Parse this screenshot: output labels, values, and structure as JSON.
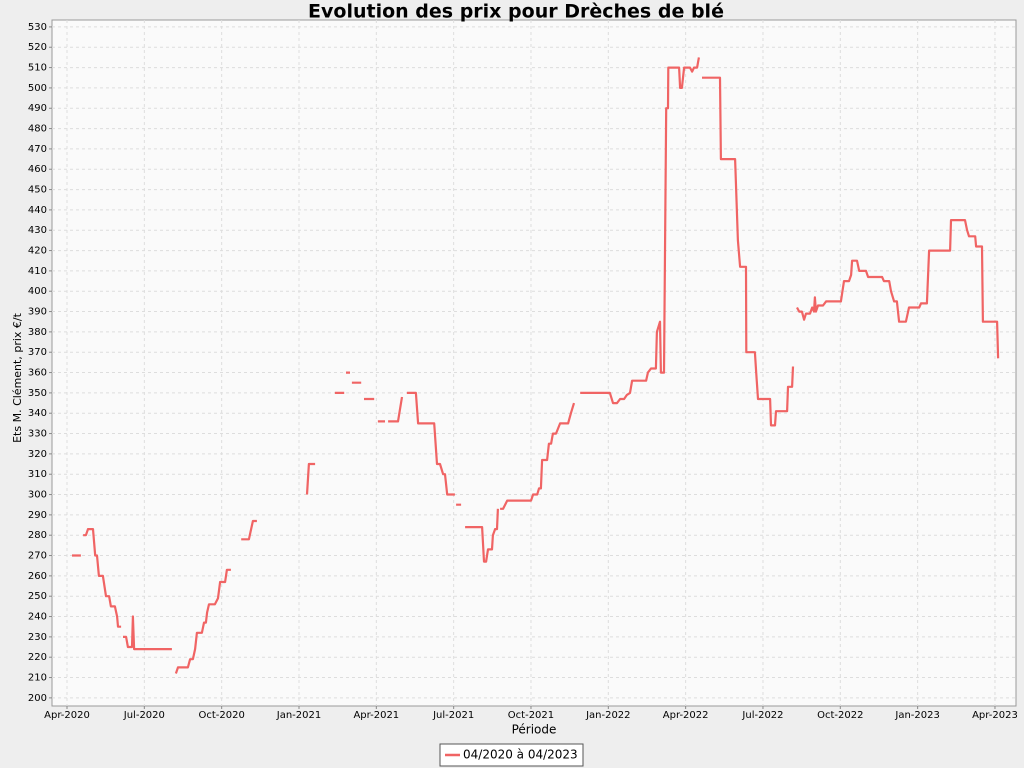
{
  "chart_data": {
    "type": "line",
    "title": "Evolution des prix pour Drèches de blé",
    "x_label": "Période",
    "y_label": "Ets M. Clément, prix €/t",
    "grid": true,
    "legend": "bottom",
    "xlim": [
      2020.2015,
      2023.318
    ],
    "ylim": [
      196,
      533.4
    ],
    "xticks": [
      {
        "value": 2020.25,
        "label": "Apr-2020"
      },
      {
        "value": 2020.5,
        "label": "Jul-2020"
      },
      {
        "value": 2020.75,
        "label": "Oct-2020"
      },
      {
        "value": 2021.0,
        "label": "Jan-2021"
      },
      {
        "value": 2021.25,
        "label": "Apr-2021"
      },
      {
        "value": 2021.5,
        "label": "Jul-2021"
      },
      {
        "value": 2021.75,
        "label": "Oct-2021"
      },
      {
        "value": 2022.0,
        "label": "Jan-2022"
      },
      {
        "value": 2022.25,
        "label": "Apr-2022"
      },
      {
        "value": 2022.5,
        "label": "Jul-2022"
      },
      {
        "value": 2022.75,
        "label": "Oct-2022"
      },
      {
        "value": 2023.0,
        "label": "Jan-2023"
      },
      {
        "value": 2023.25,
        "label": "Apr-2023"
      }
    ],
    "yticks": [
      200,
      210,
      220,
      230,
      240,
      250,
      260,
      270,
      280,
      290,
      300,
      310,
      320,
      330,
      340,
      350,
      360,
      370,
      380,
      390,
      400,
      410,
      420,
      430,
      440,
      450,
      460,
      470,
      480,
      490,
      500,
      510,
      520,
      530
    ],
    "series": [
      {
        "name": "04/2020 à 04/2023",
        "color": "#f06464",
        "x": [
          2020.266,
          2020.295,
          null,
          2020.302,
          2020.311,
          2020.318,
          2020.334,
          2020.341,
          2020.347,
          2020.353,
          2020.366,
          2020.376,
          2020.386,
          2020.392,
          2020.405,
          2020.412,
          2020.415,
          2020.425,
          null,
          2020.431,
          2020.441,
          2020.447,
          2020.46,
          2020.463,
          2020.467,
          2020.589,
          null,
          2020.602,
          2020.609,
          2020.641,
          2020.648,
          2020.657,
          2020.664,
          2020.67,
          2020.686,
          2020.693,
          2020.699,
          2020.703,
          2020.709,
          2020.728,
          2020.738,
          2020.745,
          2020.761,
          2020.767,
          2020.78,
          null,
          2020.813,
          2020.838,
          2020.851,
          2020.864,
          null,
          2021.026,
          2021.032,
          2021.052,
          null,
          2021.116,
          2021.146,
          null,
          2021.152,
          2021.165,
          null,
          2021.171,
          2021.201,
          null,
          2021.21,
          2021.243,
          null,
          2021.255,
          2021.278,
          null,
          2021.288,
          2021.32,
          2021.333,
          null,
          2021.349,
          2021.378,
          2021.385,
          2021.437,
          2021.446,
          2021.456,
          2021.466,
          2021.472,
          2021.479,
          2021.504,
          null,
          2021.508,
          2021.524,
          null,
          2021.537,
          2021.592,
          2021.598,
          2021.605,
          2021.611,
          2021.624,
          2021.627,
          2021.634,
          2021.64,
          2021.643,
          null,
          2021.65,
          2021.66,
          2021.673,
          2021.75,
          2021.757,
          2021.77,
          2021.776,
          2021.782,
          2021.786,
          2021.802,
          2021.808,
          2021.815,
          2021.821,
          2021.831,
          2021.844,
          2021.87,
          2021.879,
          2021.889,
          null,
          2021.909,
          2022.005,
          2022.015,
          2022.028,
          2022.038,
          2022.051,
          2022.06,
          2022.07,
          2022.077,
          2022.122,
          2022.128,
          2022.138,
          2022.154,
          2022.157,
          2022.167,
          2022.17,
          2022.18,
          2022.187,
          2022.193,
          2022.194,
          2022.229,
          2022.232,
          2022.238,
          2022.245,
          2022.264,
          2022.271,
          2022.277,
          2022.287,
          2022.293,
          null,
          2022.303,
          2022.361,
          2022.364,
          2022.41,
          2022.419,
          2022.426,
          2022.445,
          2022.446,
          2022.474,
          2022.478,
          2022.484,
          2022.523,
          2022.526,
          2022.539,
          2022.542,
          2022.578,
          2022.581,
          2022.594,
          2022.597,
          null,
          2022.61,
          2022.617,
          2022.626,
          2022.633,
          2022.639,
          2022.652,
          2022.659,
          2022.665,
          2022.668,
          2022.671,
          2022.678,
          2022.694,
          2022.704,
          2022.752,
          2022.762,
          2022.778,
          2022.785,
          2022.788,
          2022.804,
          2022.811,
          2022.833,
          2022.84,
          2022.885,
          2022.891,
          2022.908,
          2022.914,
          2022.924,
          2022.933,
          2022.94,
          2022.962,
          2022.972,
          2023.005,
          2023.011,
          2023.03,
          2023.037,
          2023.105,
          2023.108,
          2023.153,
          2023.16,
          2023.166,
          2023.186,
          2023.189,
          2023.208,
          2023.211,
          2023.257,
          2023.26
        ],
        "values": [
          270,
          270,
          null,
          280,
          280,
          283,
          283,
          270,
          270,
          260,
          260,
          250,
          250,
          245,
          245,
          240,
          235,
          235,
          null,
          230,
          230,
          225,
          225,
          240,
          224,
          224,
          null,
          212,
          215,
          215,
          219,
          219,
          224,
          232,
          232,
          237,
          237,
          242,
          246,
          246,
          249,
          257,
          257,
          263,
          263,
          null,
          278,
          278,
          287,
          287,
          null,
          300,
          315,
          315,
          null,
          350,
          350,
          null,
          360,
          360,
          null,
          355,
          355,
          null,
          347,
          347,
          null,
          336,
          336,
          null,
          336,
          336,
          348,
          null,
          350,
          350,
          335,
          335,
          315,
          315,
          310,
          310,
          300,
          300,
          null,
          295,
          295,
          null,
          284,
          284,
          267,
          267,
          273,
          273,
          280,
          283,
          283,
          293,
          null,
          293,
          293,
          297,
          297,
          300,
          300,
          303,
          303,
          317,
          317,
          325,
          325,
          330,
          330,
          335,
          335,
          340,
          345,
          null,
          350,
          350,
          345,
          345,
          347,
          347,
          349,
          350,
          356,
          356,
          360,
          362,
          362,
          380,
          385,
          360,
          360,
          490,
          490,
          510,
          510,
          500,
          500,
          510,
          510,
          508,
          510,
          510,
          515,
          null,
          505,
          505,
          465,
          465,
          425,
          412,
          412,
          370,
          370,
          360,
          347,
          347,
          334,
          334,
          341,
          341,
          353,
          353,
          363,
          null,
          392,
          390,
          390,
          386,
          389,
          389,
          392,
          390,
          397,
          390,
          393,
          393,
          395,
          395,
          405,
          405,
          408,
          415,
          415,
          410,
          410,
          407,
          407,
          405,
          405,
          400,
          395,
          395,
          385,
          385,
          392,
          392,
          394,
          394,
          420,
          420,
          435,
          435,
          430,
          427,
          427,
          422,
          422,
          385,
          385,
          367
        ]
      }
    ]
  }
}
